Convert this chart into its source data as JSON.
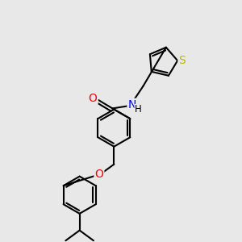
{
  "background_color": "#e8e8e8",
  "bond_color": "#000000",
  "atom_colors": {
    "O": "#ff0000",
    "N": "#0000ff",
    "S": "#b8b800",
    "H": "#000000",
    "C": "#000000"
  },
  "line_width": 1.5,
  "dbo": 0.055,
  "figsize": [
    3.0,
    3.0
  ],
  "dpi": 100
}
